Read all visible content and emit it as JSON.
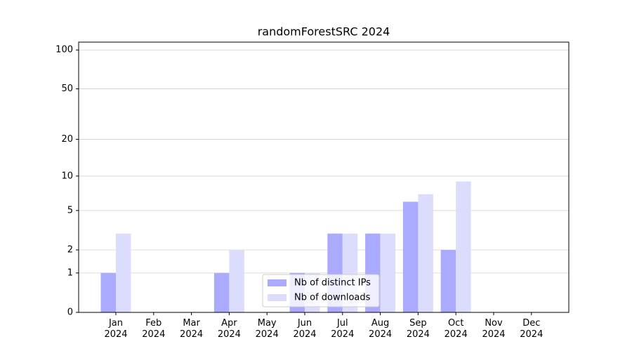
{
  "chart_data": {
    "type": "bar",
    "title": "randomForestSRC 2024",
    "categories": [
      "Jan 2024",
      "Feb 2024",
      "Mar 2024",
      "Apr 2024",
      "May 2024",
      "Jun 2024",
      "Jul 2024",
      "Aug 2024",
      "Sep 2024",
      "Oct 2024",
      "Nov 2024",
      "Dec 2024"
    ],
    "series": [
      {
        "name": "Nb of distinct IPs",
        "color": "#aaaaff",
        "values": [
          1,
          0,
          0,
          1,
          0,
          1,
          3,
          3,
          6,
          2,
          0,
          0
        ]
      },
      {
        "name": "Nb of downloads",
        "color": "#dcdcfc",
        "values": [
          3,
          0,
          0,
          2,
          0,
          1,
          3,
          3,
          7,
          9,
          0,
          0
        ]
      }
    ],
    "yscale": "log1p",
    "ylim": [
      0,
      115
    ],
    "yticks": [
      0,
      1,
      2,
      5,
      10,
      20,
      50,
      100
    ],
    "grid": true,
    "legend": "lower center"
  }
}
